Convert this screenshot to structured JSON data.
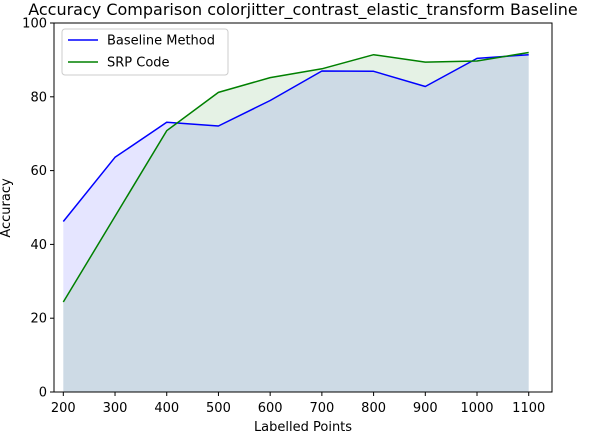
{
  "chart_data": {
    "type": "line",
    "title": "Accuracy Comparison colorjitter_contrast_elastic_transform Baseline",
    "xlabel": "Labelled Points",
    "ylabel": "Accuracy",
    "x": [
      200,
      300,
      400,
      500,
      600,
      700,
      800,
      900,
      1000,
      1100
    ],
    "xticks": [
      "200",
      "300",
      "400",
      "500",
      "600",
      "700",
      "800",
      "900",
      "1000",
      "1100"
    ],
    "yticks": [
      "0",
      "20",
      "40",
      "60",
      "80",
      "100"
    ],
    "xlim": [
      182,
      1145
    ],
    "ylim": [
      0,
      100
    ],
    "grid": false,
    "legend_position": "top-left",
    "series": [
      {
        "name": "Baseline Method",
        "color": "#0000ff",
        "fill": "#0000ff",
        "values": [
          46.2,
          63.6,
          73.1,
          72.1,
          79.0,
          87.0,
          86.9,
          82.8,
          90.4,
          91.4
        ]
      },
      {
        "name": "SRP Code",
        "color": "#008000",
        "fill": "#008000",
        "values": [
          24.4,
          47.6,
          70.8,
          81.2,
          85.2,
          87.6,
          91.4,
          89.4,
          89.7,
          92.0
        ]
      }
    ]
  }
}
